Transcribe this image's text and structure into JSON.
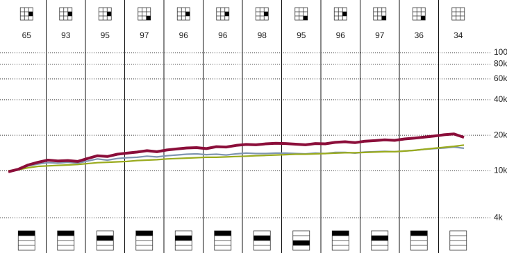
{
  "chart_data": {
    "type": "line",
    "columns": [
      {
        "rank": 65,
        "style_box": [
          1,
          2
        ],
        "band": 0
      },
      {
        "rank": 93,
        "style_box": [
          1,
          2
        ],
        "band": 0
      },
      {
        "rank": 95,
        "style_box": [
          1,
          2
        ],
        "band": 1
      },
      {
        "rank": 97,
        "style_box": [
          2,
          2
        ],
        "band": 0
      },
      {
        "rank": 96,
        "style_box": [
          1,
          2
        ],
        "band": 1
      },
      {
        "rank": 96,
        "style_box": [
          1,
          2
        ],
        "band": 0
      },
      {
        "rank": 98,
        "style_box": [
          1,
          2
        ],
        "band": 1
      },
      {
        "rank": 95,
        "style_box": [
          2,
          2
        ],
        "band": 2
      },
      {
        "rank": 96,
        "style_box": [
          1,
          2
        ],
        "band": 0
      },
      {
        "rank": 97,
        "style_box": [
          2,
          2
        ],
        "band": 1
      },
      {
        "rank": 36,
        "style_box": [
          2,
          2
        ],
        "band": 0
      },
      {
        "rank": 34,
        "style_box": null,
        "band": null
      }
    ],
    "log_scale": true,
    "ylim": [
      3500,
      110000
    ],
    "yticks": [
      {
        "value": 4000,
        "label": "4k"
      },
      {
        "value": 10000,
        "label": "10k"
      },
      {
        "value": 20000,
        "label": "20k"
      },
      {
        "value": 40000,
        "label": "40k"
      },
      {
        "value": 60000,
        "label": "60k"
      },
      {
        "value": 80000,
        "label": "80k"
      },
      {
        "value": 100000,
        "label": "100k"
      }
    ],
    "grid": true,
    "series": [
      {
        "color": "#7f95b0",
        "values": [
          10000,
          10300,
          11000,
          11400,
          11700,
          11600,
          11800,
          11600,
          12100,
          12600,
          12300,
          12700,
          12900,
          13000,
          13300,
          13100,
          13400,
          13600,
          13800,
          13900,
          13700,
          13800,
          13600,
          13900,
          14100,
          14000,
          14000,
          14100,
          14100,
          14000,
          13900,
          14100,
          14000,
          14300,
          14300,
          14100,
          14400,
          14500,
          14600,
          14500,
          14700,
          14900,
          15200,
          15400,
          15600,
          15900,
          15500
        ]
      },
      {
        "color": "#9aab1e",
        "values": [
          10000,
          10200,
          10600,
          10900,
          11000,
          11100,
          11200,
          11300,
          11500,
          11700,
          11800,
          11900,
          12000,
          12200,
          12300,
          12400,
          12600,
          12700,
          12800,
          12900,
          13000,
          13000,
          13100,
          13200,
          13300,
          13400,
          13500,
          13600,
          13700,
          13800,
          13800,
          13900,
          14000,
          14100,
          14200,
          14200,
          14300,
          14400,
          14500,
          14500,
          14700,
          14900,
          15200,
          15500,
          15800,
          16100,
          16500
        ]
      },
      {
        "color": "#8b0e3a",
        "values": [
          9800,
          10300,
          11200,
          11800,
          12300,
          12100,
          12200,
          12000,
          12700,
          13400,
          13200,
          13800,
          14100,
          14400,
          14800,
          14500,
          15000,
          15300,
          15600,
          15700,
          15400,
          16000,
          15900,
          16400,
          16700,
          16600,
          16900,
          17100,
          17000,
          16800,
          16600,
          17000,
          16900,
          17400,
          17600,
          17300,
          17800,
          18000,
          18300,
          18100,
          18600,
          18900,
          19300,
          19700,
          20200,
          20500,
          19200
        ]
      }
    ]
  }
}
